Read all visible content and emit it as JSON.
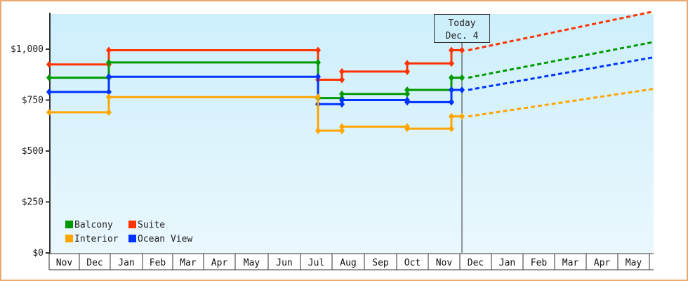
{
  "chart_data": {
    "type": "line",
    "title": "",
    "xlabel": "",
    "ylabel": "",
    "ylim": [
      0,
      1180
    ],
    "y_ticks": [
      "$0",
      "$250",
      "$500",
      "$750",
      "$1,000"
    ],
    "y_tick_values": [
      0,
      250,
      500,
      750,
      1000
    ],
    "x_months": [
      "Nov",
      "Dec",
      "Jan",
      "Feb",
      "Mar",
      "Apr",
      "May",
      "Jun",
      "Jul",
      "Aug",
      "Sep",
      "Oct",
      "Nov",
      "Dec",
      "Jan",
      "Feb",
      "Mar",
      "Apr",
      "May"
    ],
    "today_marker": {
      "line1": "Today",
      "line2": "Dec. 4"
    },
    "legend": [
      {
        "name": "Balcony",
        "color": "#009900"
      },
      {
        "name": "Suite",
        "color": "#ff3300"
      },
      {
        "name": "Interior",
        "color": "#ffa500"
      },
      {
        "name": "Ocean View",
        "color": "#0033ff"
      }
    ],
    "step_x": [
      70,
      155,
      155,
      453,
      453,
      487,
      487,
      580,
      580,
      643,
      643,
      658
    ],
    "series": [
      {
        "name": "Suite",
        "color": "#ff3300",
        "values": [
          925,
          925,
          995,
          995,
          850,
          850,
          890,
          890,
          930,
          930,
          995,
          995
        ],
        "projection_end": 1185
      },
      {
        "name": "Balcony",
        "color": "#009900",
        "values": [
          860,
          860,
          935,
          935,
          760,
          760,
          780,
          780,
          800,
          800,
          860,
          860
        ],
        "projection_end": 1035
      },
      {
        "name": "Ocean View",
        "color": "#0033ff",
        "values": [
          790,
          790,
          865,
          865,
          730,
          730,
          750,
          750,
          740,
          740,
          800,
          800
        ],
        "projection_end": 960
      },
      {
        "name": "Interior",
        "color": "#ffa500",
        "values": [
          690,
          690,
          765,
          765,
          600,
          600,
          620,
          620,
          610,
          610,
          670,
          670
        ],
        "projection_end": 805
      }
    ],
    "grid": false,
    "legend_position": "bottom-left inside plot"
  }
}
